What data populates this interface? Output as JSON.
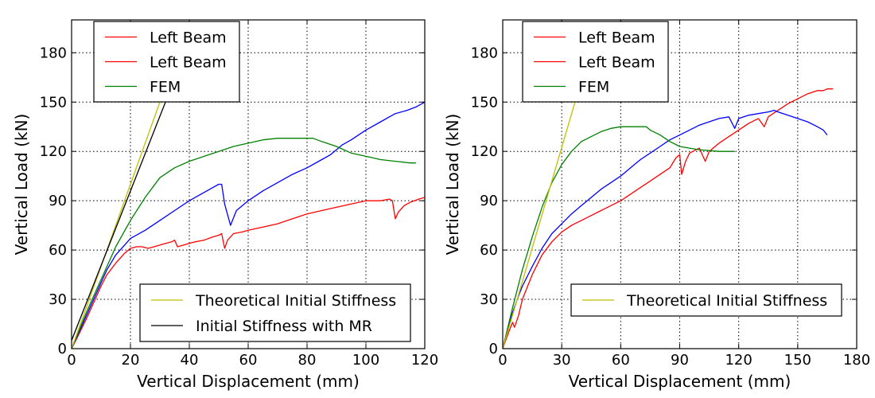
{
  "chart_data": [
    {
      "type": "line",
      "xlabel": "Vertical Displacement (mm)",
      "ylabel": "Vertical Load (kN)",
      "xlim": [
        0,
        120
      ],
      "ylim": [
        0,
        200
      ],
      "xticks": [
        "0",
        "20",
        "40",
        "60",
        "80",
        "100",
        "120"
      ],
      "yticks": [
        "0",
        "30",
        "60",
        "90",
        "120",
        "150",
        "180"
      ],
      "grid": true,
      "series": [
        {
          "name": "Left Beam",
          "color": "#ff0000",
          "legend": "top-left",
          "points": [
            [
              0,
              0
            ],
            [
              2,
              7
            ],
            [
              5,
              18
            ],
            [
              8,
              30
            ],
            [
              10,
              38
            ],
            [
              12,
              45
            ],
            [
              15,
              52
            ],
            [
              18,
              58
            ],
            [
              20,
              61
            ],
            [
              22,
              62
            ],
            [
              24,
              62
            ],
            [
              26,
              61
            ],
            [
              28,
              62
            ],
            [
              30,
              63
            ],
            [
              32,
              64
            ],
            [
              34,
              65
            ],
            [
              35,
              66
            ],
            [
              36,
              62
            ],
            [
              38,
              63
            ],
            [
              40,
              64
            ],
            [
              42,
              65
            ],
            [
              45,
              66
            ],
            [
              48,
              68
            ],
            [
              50,
              69
            ],
            [
              51,
              70
            ],
            [
              52,
              61
            ],
            [
              53,
              66
            ],
            [
              55,
              70
            ],
            [
              58,
              71
            ],
            [
              60,
              72
            ],
            [
              65,
              74
            ],
            [
              70,
              76
            ],
            [
              75,
              79
            ],
            [
              80,
              82
            ],
            [
              85,
              84
            ],
            [
              90,
              86
            ],
            [
              95,
              88
            ],
            [
              100,
              90
            ],
            [
              105,
              90
            ],
            [
              108,
              91
            ],
            [
              109,
              90
            ],
            [
              110,
              79
            ],
            [
              111,
              83
            ],
            [
              113,
              87
            ],
            [
              115,
              89
            ],
            [
              118,
              91
            ],
            [
              120,
              92
            ]
          ]
        },
        {
          "name": "Left Beam",
          "color": "#ff0000",
          "legend": "top-left",
          "points": []
        },
        {
          "name": "",
          "color": "#0000ff",
          "points": [
            [
              0,
              0
            ],
            [
              2,
              8
            ],
            [
              5,
              20
            ],
            [
              8,
              32
            ],
            [
              10,
              40
            ],
            [
              12,
              48
            ],
            [
              15,
              57
            ],
            [
              18,
              63
            ],
            [
              20,
              67
            ],
            [
              25,
              72
            ],
            [
              30,
              78
            ],
            [
              35,
              84
            ],
            [
              40,
              90
            ],
            [
              45,
              95
            ],
            [
              48,
              98
            ],
            [
              50,
              100
            ],
            [
              51,
              100
            ],
            [
              52,
              88
            ],
            [
              54,
              75
            ],
            [
              56,
              84
            ],
            [
              60,
              90
            ],
            [
              65,
              96
            ],
            [
              70,
              101
            ],
            [
              75,
              106
            ],
            [
              80,
              110
            ],
            [
              85,
              115
            ],
            [
              88,
              118
            ],
            [
              90,
              121
            ],
            [
              92,
              124
            ],
            [
              95,
              127
            ],
            [
              100,
              133
            ],
            [
              105,
              138
            ],
            [
              108,
              141
            ],
            [
              110,
              143
            ],
            [
              114,
              145
            ],
            [
              117,
              147
            ],
            [
              120,
              150
            ]
          ]
        },
        {
          "name": "FEM",
          "color": "#008000",
          "legend": "top-left",
          "points": [
            [
              0,
              0
            ],
            [
              5,
              22
            ],
            [
              10,
              42
            ],
            [
              15,
              62
            ],
            [
              20,
              78
            ],
            [
              25,
              92
            ],
            [
              30,
              104
            ],
            [
              35,
              110
            ],
            [
              40,
              114
            ],
            [
              45,
              117
            ],
            [
              50,
              120
            ],
            [
              55,
              123
            ],
            [
              60,
              125
            ],
            [
              65,
              127
            ],
            [
              70,
              128
            ],
            [
              75,
              128
            ],
            [
              80,
              128
            ],
            [
              82,
              128
            ],
            [
              85,
              126
            ],
            [
              90,
              123
            ],
            [
              95,
              119
            ],
            [
              100,
              117
            ],
            [
              105,
              115
            ],
            [
              110,
              114
            ],
            [
              115,
              113
            ],
            [
              117,
              113
            ]
          ]
        },
        {
          "name": "Theoretical Initial Stiffness",
          "color": "#bfbf00",
          "legend": "lower-right",
          "points": [
            [
              0,
              0
            ],
            [
              31,
              155
            ]
          ]
        },
        {
          "name": "Initial Stiffness with MR",
          "color": "#000000",
          "legend": "lower-right",
          "points": [
            [
              0,
              5
            ],
            [
              33,
              155
            ]
          ]
        }
      ]
    },
    {
      "type": "line",
      "xlabel": "Vertical Displacement (mm)",
      "ylabel": "Vertical Load (kN)",
      "xlim": [
        0,
        180
      ],
      "ylim": [
        0,
        200
      ],
      "xticks": [
        "0",
        "30",
        "60",
        "90",
        "120",
        "150",
        "180"
      ],
      "yticks": [
        "0",
        "30",
        "60",
        "90",
        "120",
        "150",
        "180"
      ],
      "grid": true,
      "series": [
        {
          "name": "Left Beam",
          "color": "#ff0000",
          "legend": "top-left",
          "points": [
            [
              0,
              0
            ],
            [
              3,
              10
            ],
            [
              5,
              16
            ],
            [
              6,
              13
            ],
            [
              8,
              20
            ],
            [
              10,
              30
            ],
            [
              15,
              45
            ],
            [
              20,
              57
            ],
            [
              25,
              65
            ],
            [
              30,
              71
            ],
            [
              35,
              75
            ],
            [
              40,
              78
            ],
            [
              45,
              81
            ],
            [
              50,
              84
            ],
            [
              55,
              87
            ],
            [
              60,
              90
            ],
            [
              65,
              94
            ],
            [
              70,
              98
            ],
            [
              75,
              102
            ],
            [
              80,
              106
            ],
            [
              85,
              110
            ],
            [
              88,
              116
            ],
            [
              90,
              118
            ],
            [
              91,
              106
            ],
            [
              93,
              114
            ],
            [
              95,
              119
            ],
            [
              100,
              122
            ],
            [
              103,
              114
            ],
            [
              105,
              120
            ],
            [
              110,
              125
            ],
            [
              115,
              129
            ],
            [
              120,
              133
            ],
            [
              125,
              137
            ],
            [
              130,
              140
            ],
            [
              133,
              135
            ],
            [
              135,
              141
            ],
            [
              140,
              145
            ],
            [
              145,
              149
            ],
            [
              150,
              152
            ],
            [
              155,
              155
            ],
            [
              160,
              157
            ],
            [
              163,
              157
            ],
            [
              165,
              158
            ],
            [
              168,
              158
            ]
          ]
        },
        {
          "name": "Left Beam",
          "color": "#ff0000",
          "legend": "top-left",
          "points": []
        },
        {
          "name": "",
          "color": "#0000ff",
          "points": [
            [
              0,
              0
            ],
            [
              3,
              14
            ],
            [
              5,
              22
            ],
            [
              8,
              32
            ],
            [
              10,
              38
            ],
            [
              15,
              50
            ],
            [
              20,
              61
            ],
            [
              25,
              70
            ],
            [
              30,
              76
            ],
            [
              35,
              82
            ],
            [
              40,
              87
            ],
            [
              45,
              92
            ],
            [
              50,
              97
            ],
            [
              55,
              101
            ],
            [
              60,
              105
            ],
            [
              65,
              110
            ],
            [
              70,
              115
            ],
            [
              75,
              119
            ],
            [
              80,
              123
            ],
            [
              85,
              127
            ],
            [
              90,
              130
            ],
            [
              95,
              133
            ],
            [
              100,
              136
            ],
            [
              105,
              138
            ],
            [
              110,
              140
            ],
            [
              115,
              141
            ],
            [
              118,
              134
            ],
            [
              120,
              140
            ],
            [
              125,
              142
            ],
            [
              130,
              143
            ],
            [
              135,
              144
            ],
            [
              138,
              145
            ],
            [
              140,
              144
            ],
            [
              145,
              142
            ],
            [
              150,
              140
            ],
            [
              155,
              138
            ],
            [
              160,
              135
            ],
            [
              163,
              133
            ],
            [
              165,
              130
            ]
          ]
        },
        {
          "name": "FEM",
          "color": "#008000",
          "legend": "top-left",
          "points": [
            [
              0,
              0
            ],
            [
              5,
              25
            ],
            [
              10,
              48
            ],
            [
              15,
              68
            ],
            [
              20,
              86
            ],
            [
              25,
              101
            ],
            [
              30,
              112
            ],
            [
              35,
              120
            ],
            [
              40,
              126
            ],
            [
              45,
              129
            ],
            [
              50,
              132
            ],
            [
              55,
              134
            ],
            [
              60,
              135
            ],
            [
              65,
              135
            ],
            [
              70,
              135
            ],
            [
              73,
              135
            ],
            [
              75,
              133
            ],
            [
              80,
              130
            ],
            [
              85,
              126
            ],
            [
              90,
              123
            ],
            [
              95,
              122
            ],
            [
              100,
              121
            ],
            [
              110,
              120
            ],
            [
              118,
              120
            ]
          ]
        },
        {
          "name": "Theoretical Initial Stiffness",
          "color": "#bfbf00",
          "legend": "lower-right",
          "points": [
            [
              0,
              0
            ],
            [
              38,
              155
            ]
          ]
        }
      ]
    }
  ]
}
